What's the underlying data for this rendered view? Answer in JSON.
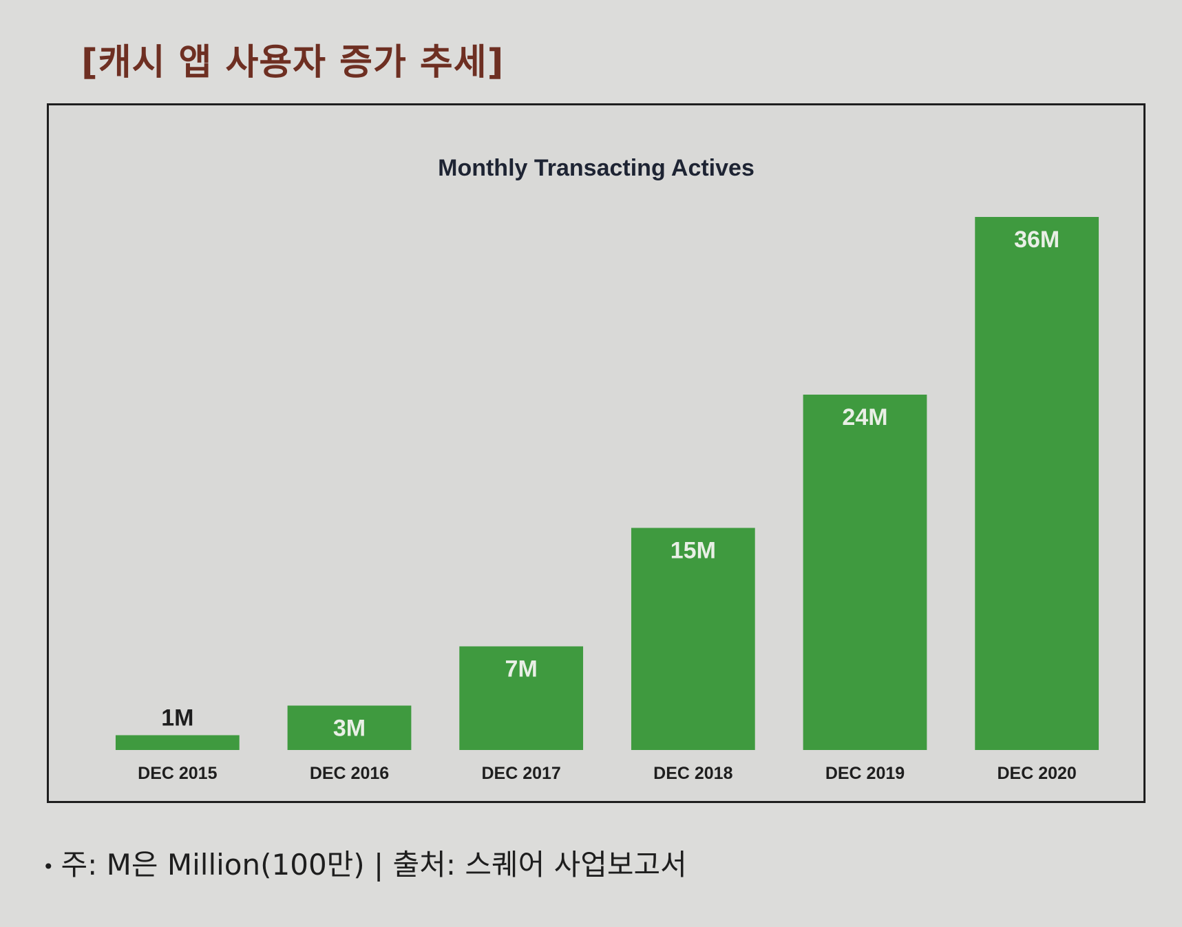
{
  "page": {
    "heading": "[캐시 앱 사용자 증가 추세]",
    "footnote_bullet": "•",
    "footnote": "주: M은 Million(100만) | 출처: 스퀘어 사업보고서"
  },
  "chart_data": {
    "type": "bar",
    "title": "Monthly Transacting Actives",
    "xlabel": "",
    "ylabel": "",
    "ylim": [
      0,
      36
    ],
    "grid": false,
    "categories": [
      "DEC 2015",
      "DEC 2016",
      "DEC 2017",
      "DEC 2018",
      "DEC 2019",
      "DEC 2020"
    ],
    "values": [
      1,
      3,
      7,
      15,
      24,
      36
    ],
    "data_labels": [
      "1M",
      "3M",
      "7M",
      "15M",
      "24M",
      "36M"
    ],
    "bar_color": "#3f9a3f",
    "label_color_inside": "#e9efe6",
    "label_color_outside": "#1e1e1e",
    "tick_color": "#1e1e1e"
  }
}
